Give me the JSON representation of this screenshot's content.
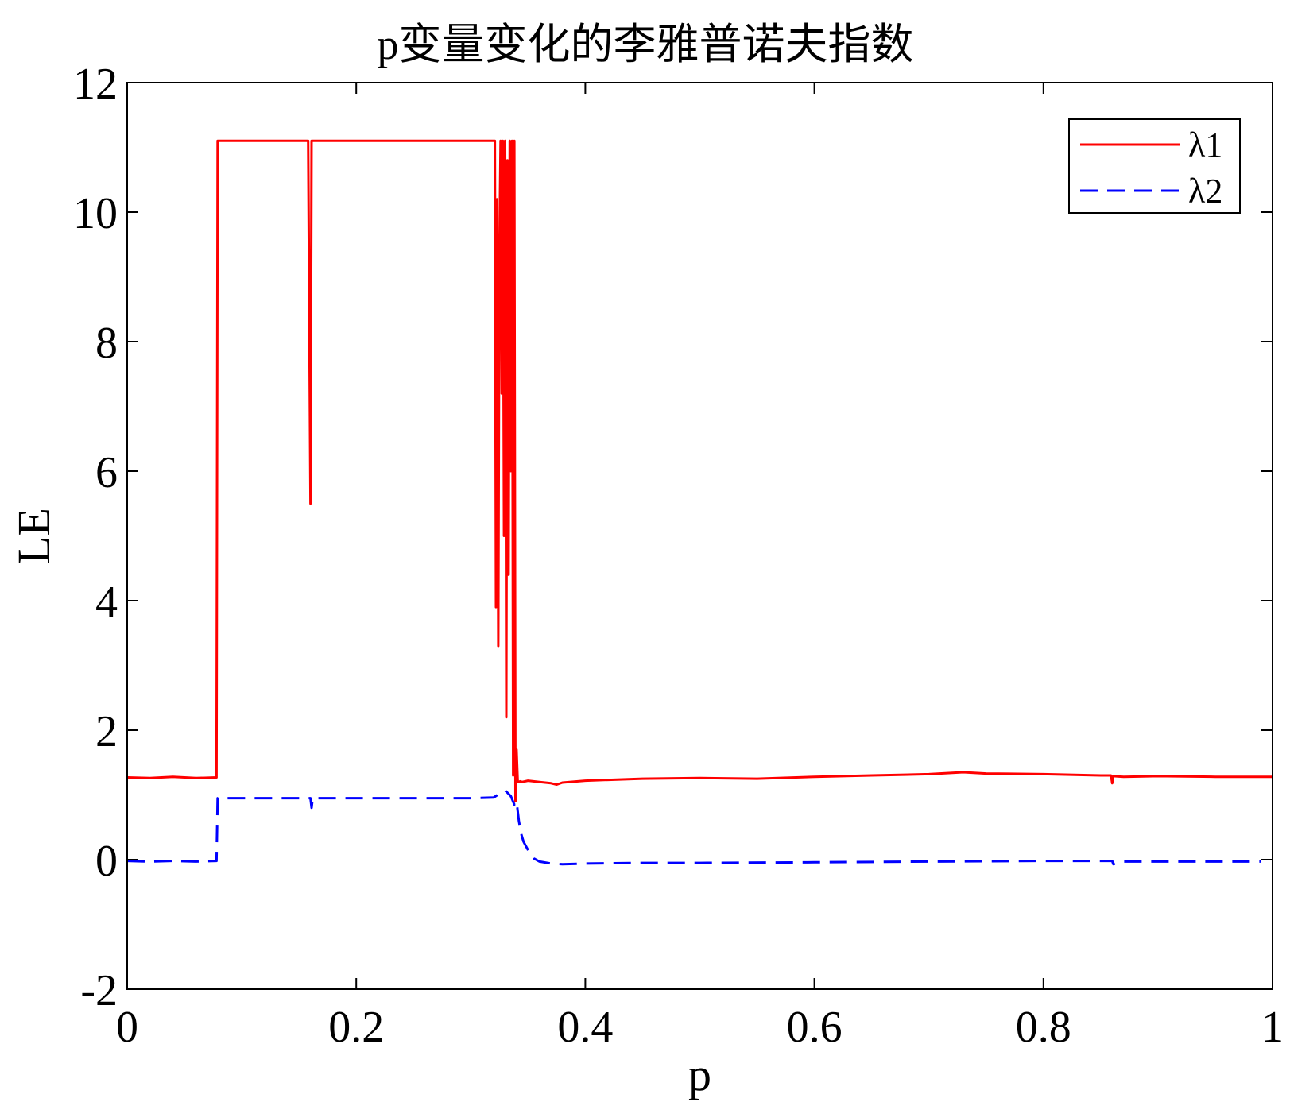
{
  "chart_data": {
    "type": "line",
    "title": "p变量变化的李雅普诺夫指数",
    "xlabel": "p",
    "ylabel": "LE",
    "xlim": [
      0,
      1
    ],
    "ylim": [
      -2,
      12
    ],
    "xticks": [
      "0",
      "0.2",
      "0.4",
      "0.6",
      "0.8",
      "1"
    ],
    "xtick_values": [
      0,
      0.2,
      0.4,
      0.6,
      0.8,
      1
    ],
    "yticks": [
      "-2",
      "0",
      "2",
      "4",
      "6",
      "8",
      "10",
      "12"
    ],
    "ytick_values": [
      -2,
      0,
      2,
      4,
      6,
      8,
      10,
      12
    ],
    "grid": false,
    "legend_position": "top-right",
    "series": [
      {
        "name": "λ1",
        "color": "#ff0000",
        "style": "solid",
        "x": [
          0,
          0.02,
          0.04,
          0.06,
          0.078,
          0.079,
          0.08,
          0.1,
          0.12,
          0.14,
          0.158,
          0.16,
          0.161,
          0.162,
          0.163,
          0.2,
          0.25,
          0.3,
          0.321,
          0.322,
          0.323,
          0.324,
          0.325,
          0.326,
          0.327,
          0.328,
          0.329,
          0.33,
          0.331,
          0.332,
          0.333,
          0.334,
          0.335,
          0.336,
          0.337,
          0.338,
          0.339,
          0.34,
          0.341,
          0.342,
          0.343,
          0.345,
          0.35,
          0.36,
          0.37,
          0.375,
          0.38,
          0.4,
          0.45,
          0.5,
          0.55,
          0.6,
          0.65,
          0.7,
          0.73,
          0.75,
          0.8,
          0.85,
          0.859,
          0.86,
          0.861,
          0.87,
          0.9,
          0.95,
          1
        ],
        "y": [
          1.27,
          1.26,
          1.28,
          1.26,
          1.27,
          11.1,
          11.1,
          11.1,
          11.1,
          11.1,
          11.1,
          5.5,
          11.1,
          11.1,
          11.1,
          11.1,
          11.1,
          11.1,
          11.1,
          3.9,
          10.2,
          3.3,
          9.4,
          11.1,
          7.2,
          11.1,
          5.0,
          11.1,
          2.2,
          10.8,
          4.4,
          11.1,
          6.0,
          11.1,
          1.3,
          11.1,
          0.9,
          1.7,
          1.2,
          1.2,
          1.21,
          1.2,
          1.22,
          1.2,
          1.18,
          1.16,
          1.19,
          1.22,
          1.25,
          1.26,
          1.25,
          1.28,
          1.3,
          1.32,
          1.35,
          1.33,
          1.32,
          1.3,
          1.3,
          1.18,
          1.29,
          1.28,
          1.29,
          1.28,
          1.28
        ]
      },
      {
        "name": "λ2",
        "color": "#0000ff",
        "style": "dashed",
        "x": [
          0,
          0.02,
          0.04,
          0.06,
          0.078,
          0.079,
          0.08,
          0.1,
          0.12,
          0.14,
          0.16,
          0.161,
          0.162,
          0.2,
          0.25,
          0.3,
          0.32,
          0.325,
          0.33,
          0.335,
          0.338,
          0.34,
          0.342,
          0.344,
          0.346,
          0.35,
          0.355,
          0.36,
          0.37,
          0.38,
          0.4,
          0.45,
          0.5,
          0.6,
          0.7,
          0.8,
          0.86,
          0.861,
          0.87,
          0.9,
          0.95,
          0.99
        ],
        "y": [
          -0.02,
          -0.03,
          -0.02,
          -0.03,
          -0.02,
          0.95,
          0.95,
          0.95,
          0.95,
          0.95,
          0.95,
          0.8,
          0.95,
          0.95,
          0.95,
          0.95,
          0.96,
          1.02,
          1.07,
          0.98,
          0.85,
          0.9,
          0.6,
          0.4,
          0.28,
          0.15,
          0.02,
          -0.03,
          -0.06,
          -0.07,
          -0.06,
          -0.05,
          -0.05,
          -0.04,
          -0.03,
          -0.02,
          -0.02,
          -0.07,
          -0.03,
          -0.03,
          -0.03,
          -0.03
        ]
      }
    ]
  }
}
